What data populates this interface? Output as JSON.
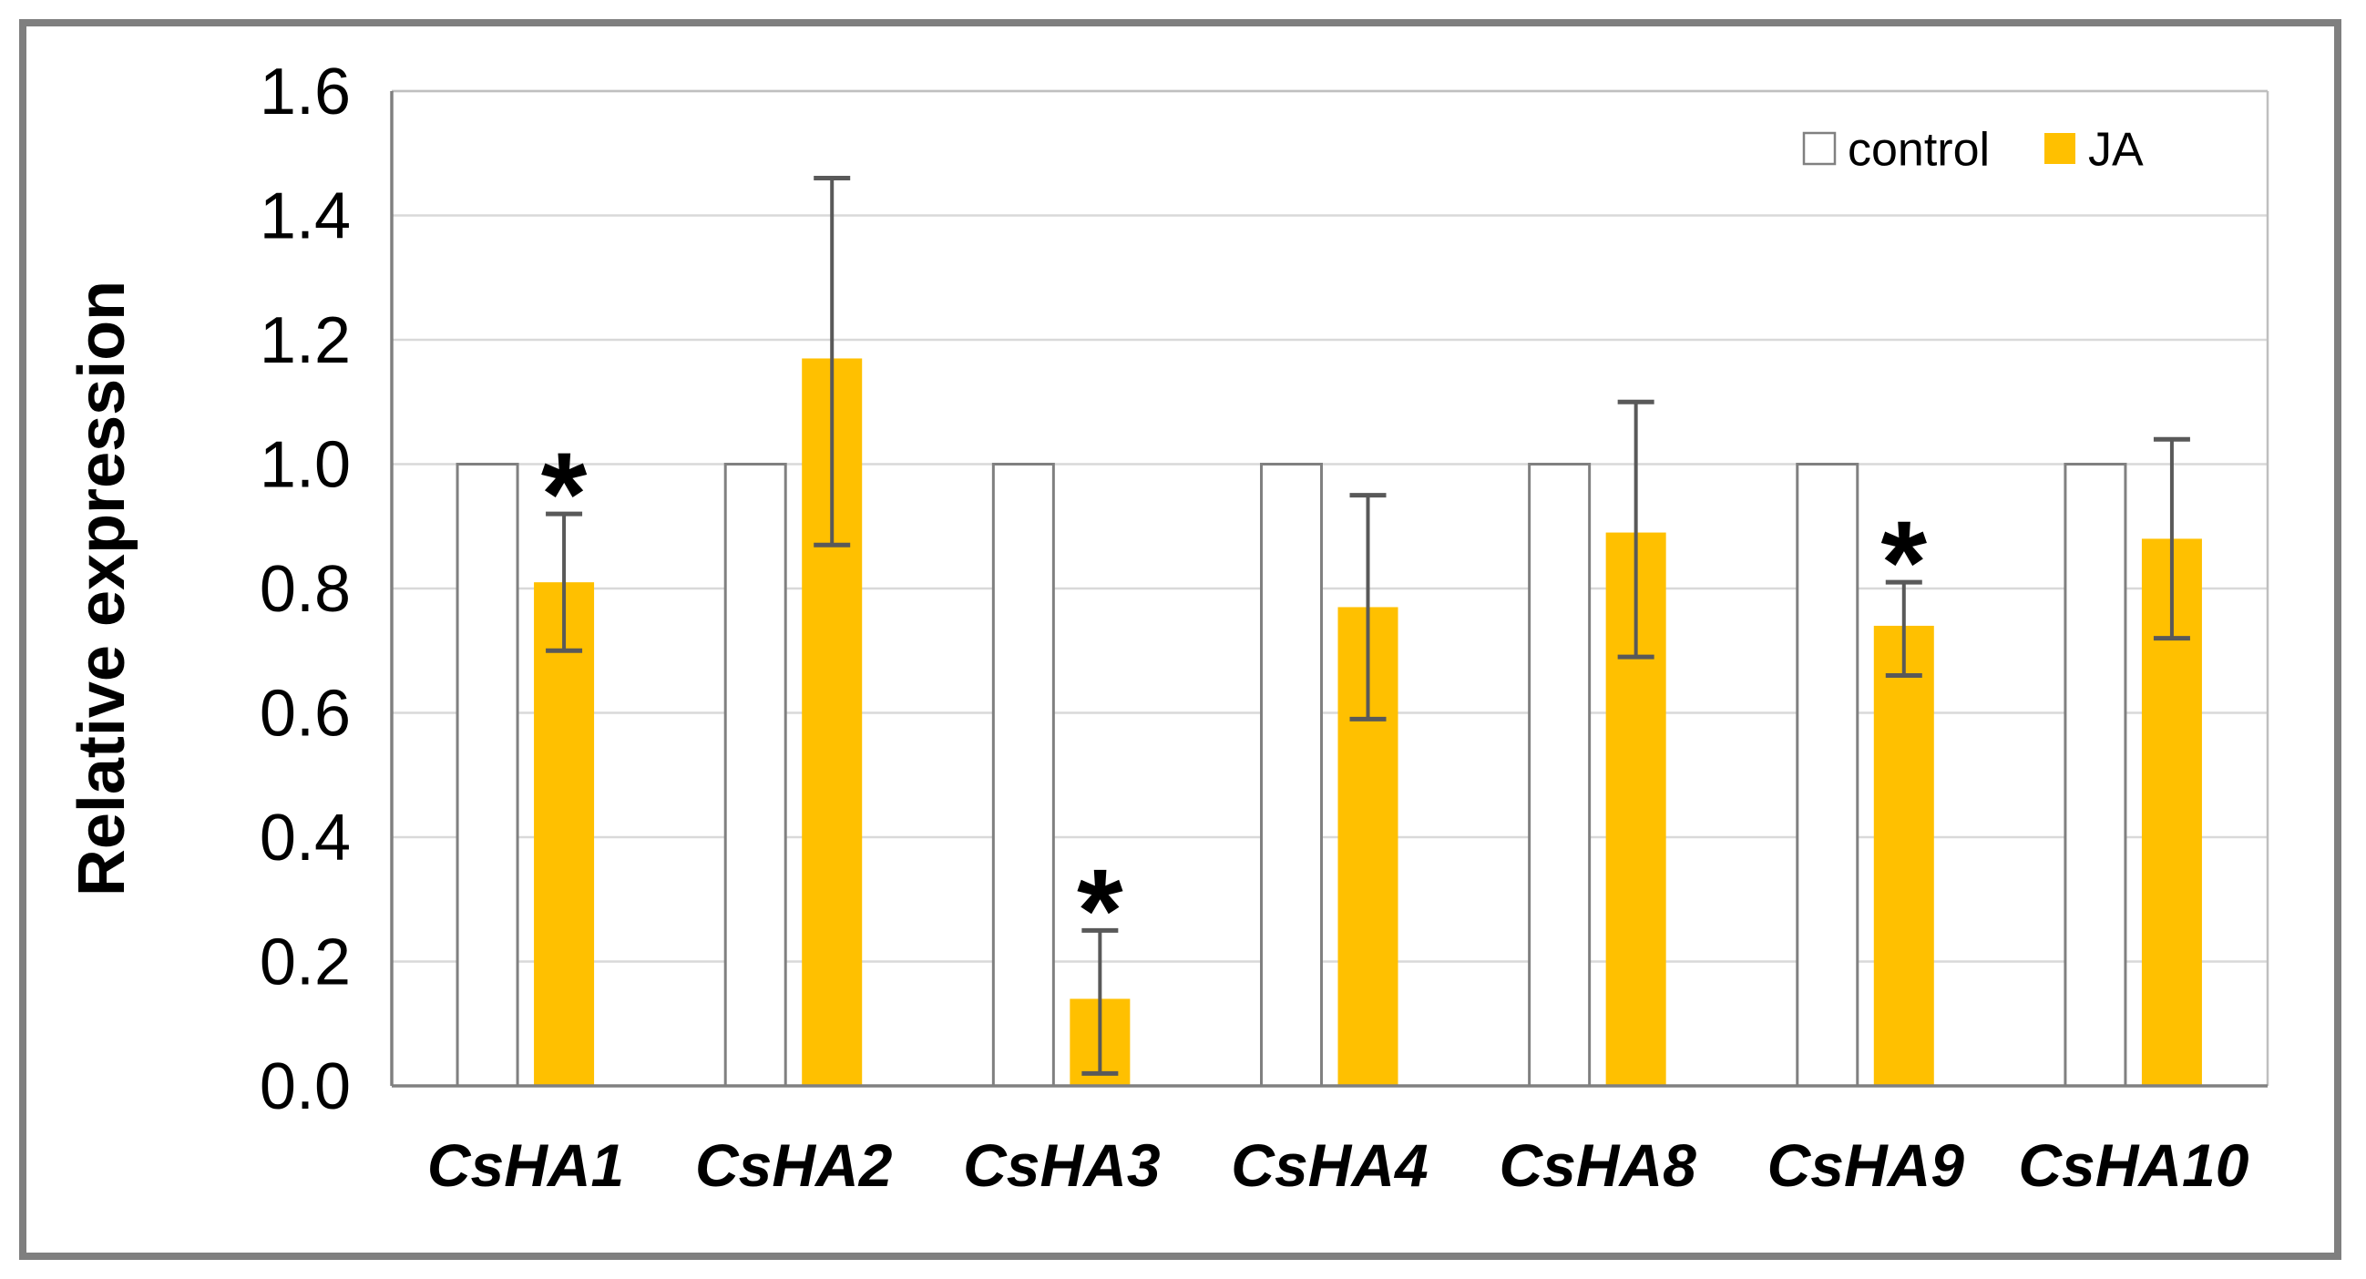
{
  "figure": {
    "kind": "scientific bar chart with error bars",
    "frame_color": "#7f7f7f",
    "background": "#ffffff"
  },
  "chart_data": {
    "type": "bar",
    "title": "",
    "xlabel": "",
    "ylabel": "Relative expression",
    "ylim": [
      0.0,
      1.6
    ],
    "yticks": [
      "0.0",
      "0.2",
      "0.4",
      "0.6",
      "0.8",
      "1.0",
      "1.2",
      "1.4",
      "1.6"
    ],
    "grid": "horizontal gridlines every 0.2",
    "gridline_color": "#d9d9d9",
    "axis_color": "#808080",
    "error_bar_color": "#595959",
    "legend_position": "top-right inside plot",
    "significance_marker": "*",
    "categories": [
      "CsHA1",
      "CsHA2",
      "CsHA3",
      "CsHA4",
      "CsHA8",
      "CsHA9",
      "CsHA10"
    ],
    "series": [
      {
        "name": "control",
        "fill": "#ffffff",
        "stroke": "#808080",
        "values": [
          1.0,
          1.0,
          1.0,
          1.0,
          1.0,
          1.0,
          1.0
        ],
        "error_top": null,
        "error_bottom": null,
        "significant": [
          false,
          false,
          false,
          false,
          false,
          false,
          false
        ]
      },
      {
        "name": "JA",
        "fill": "#ffc000",
        "stroke": "#ffc000",
        "values": [
          0.81,
          1.17,
          0.14,
          0.77,
          0.89,
          0.74,
          0.88
        ],
        "error_top": [
          0.92,
          1.46,
          0.25,
          0.95,
          1.1,
          0.81,
          1.04
        ],
        "error_bottom": [
          0.7,
          0.87,
          0.02,
          0.59,
          0.69,
          0.66,
          0.72
        ],
        "significant": [
          true,
          false,
          true,
          false,
          false,
          true,
          false
        ]
      }
    ]
  },
  "legend": {
    "items": [
      {
        "label": "control",
        "swatch_fill": "#ffffff",
        "swatch_stroke": "#808080"
      },
      {
        "label": "JA",
        "swatch_fill": "#ffc000",
        "swatch_stroke": "#ffc000"
      }
    ]
  }
}
